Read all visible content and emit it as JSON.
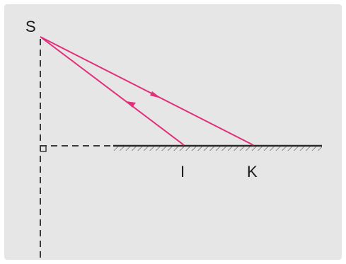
{
  "labels": {
    "source": "S",
    "point_i": "I",
    "point_k": "K"
  },
  "colors": {
    "ray": "#e0307a",
    "ink": "#1a1a1a",
    "dashed": "#3a3a3a",
    "background": "#e6e6e6"
  }
}
